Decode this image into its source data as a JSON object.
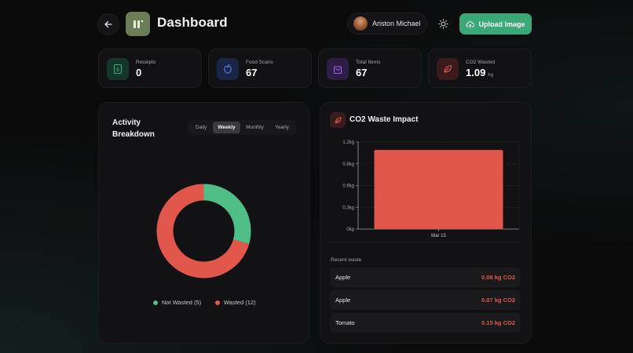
{
  "header": {
    "title": "Dashboard",
    "back_icon": "arrow-left-icon",
    "logo_icon": "app-logo",
    "user_name": "Ariston Michael",
    "theme_icon": "sun-icon",
    "upload_label": "Upload Image",
    "upload_icon": "cloud-upload-icon",
    "accent_color": "#3aa977"
  },
  "stats": [
    {
      "label": "Receipts",
      "value": "0",
      "unit": "",
      "icon": "receipt-icon",
      "color": "#3aa977"
    },
    {
      "label": "Food Scans",
      "value": "67",
      "unit": "",
      "icon": "apple-icon",
      "color": "#4d7cf0"
    },
    {
      "label": "Total Items",
      "value": "67",
      "unit": "",
      "icon": "shopping-bag-icon",
      "color": "#a461e8"
    },
    {
      "label": "CO2 Wasted",
      "value": "1.09",
      "unit": "kg",
      "icon": "leaf-icon",
      "color": "#e2574c"
    }
  ],
  "activity": {
    "title": "Activity Breakdown",
    "tabs": [
      "Daily",
      "Weekly",
      "Monthly",
      "Yearly"
    ],
    "active_tab": "Weekly",
    "legend": [
      {
        "label": "Not Wasted (5)",
        "color": "#4fbf87"
      },
      {
        "label": "Wasted (12)",
        "color": "#e2574c"
      }
    ]
  },
  "co2": {
    "title": "CO2 Waste Impact",
    "icon": "leaf-icon",
    "recent_title": "Recent waste",
    "recent": [
      {
        "name": "Apple",
        "amount": "0.08 kg CO2"
      },
      {
        "name": "Apple",
        "amount": "0.07 kg CO2"
      },
      {
        "name": "Tomato",
        "amount": "0.15 kg CO2"
      }
    ]
  },
  "chart_data": [
    {
      "type": "pie",
      "title": "",
      "donut": true,
      "categories": [
        "Not Wasted",
        "Wasted"
      ],
      "values": [
        5,
        12
      ],
      "colors": [
        "#4fbf87",
        "#e2574c"
      ]
    },
    {
      "type": "bar",
      "title": "",
      "categories": [
        "Mar 15"
      ],
      "values": [
        1.09
      ],
      "yticks": [
        "0kg",
        "0.3kg",
        "0.6kg",
        "0.9kg",
        "1.2kg"
      ],
      "ylim": [
        0,
        1.2
      ],
      "color": "#e2574c",
      "grid": true
    }
  ]
}
